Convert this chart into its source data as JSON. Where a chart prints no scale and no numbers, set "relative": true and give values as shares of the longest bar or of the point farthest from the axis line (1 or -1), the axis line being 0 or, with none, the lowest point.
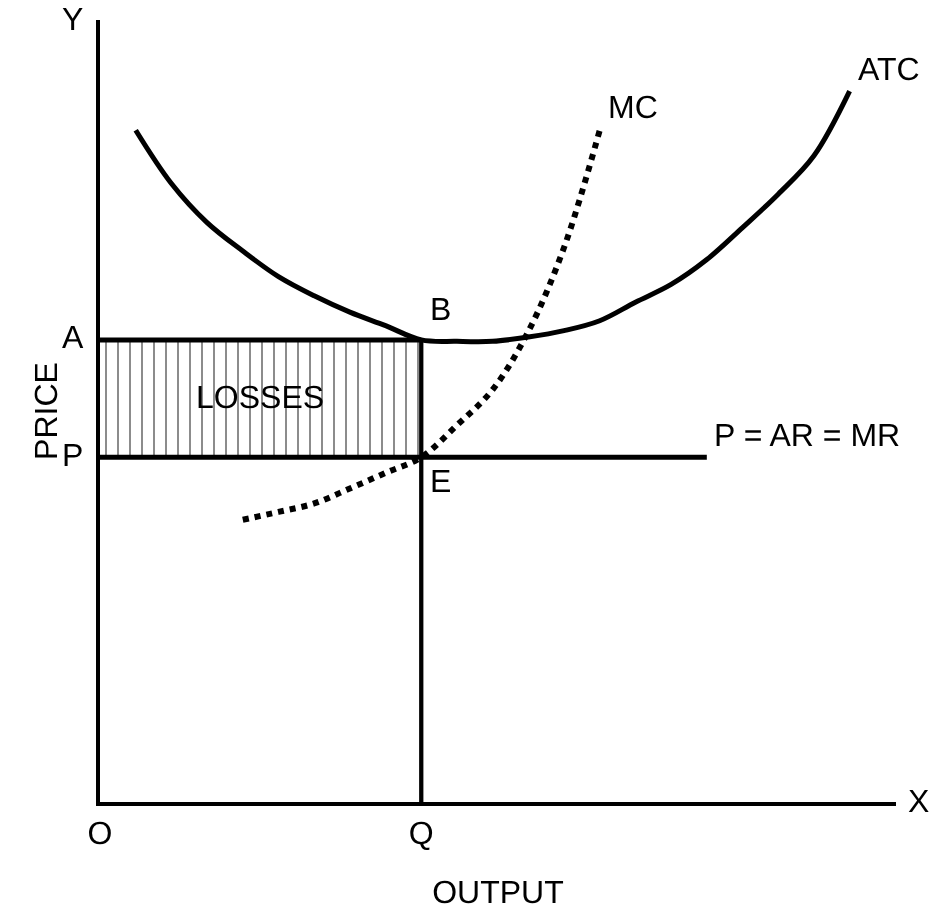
{
  "chart_data": {
    "type": "line",
    "relative": true,
    "xlabel": "OUTPUT",
    "ylabel": "PRICE",
    "legend": false,
    "marker": "none",
    "categories": [
      "O",
      null,
      null,
      null,
      null,
      null,
      null,
      null,
      null,
      "Q",
      null,
      null,
      null,
      null,
      null,
      null,
      null,
      null,
      null,
      null,
      null,
      null,
      null
    ],
    "series": [
      {
        "name": "ATC",
        "color": "#000000",
        "line_style": "solid",
        "values": [
          null,
          0.945,
          0.87,
          0.815,
          0.775,
          0.739,
          0.712,
          0.689,
          0.67,
          0.65,
          0.648,
          0.648,
          0.654,
          0.663,
          0.677,
          0.703,
          0.728,
          0.763,
          0.808,
          0.855,
          0.909,
          1,
          null
        ]
      },
      {
        "name": "MC",
        "color": "#000000",
        "line_style": "dotted",
        "values": [
          null,
          null,
          null,
          null,
          0.397,
          0.408,
          0.42,
          0.441,
          0.463,
          0.485,
          0.53,
          0.58,
          0.662,
          0.78,
          0.945,
          null,
          null,
          null,
          null,
          null,
          null,
          null,
          null
        ]
      },
      {
        "name": "P = AR = MR",
        "color": "#000000",
        "line_style": "solid",
        "values": [
          0.485,
          0.485,
          0.485,
          0.485,
          0.485,
          0.485,
          0.485,
          0.485,
          0.485,
          0.485,
          0.485,
          0.485,
          0.485,
          0.485,
          0.485,
          0.485,
          0.485,
          0.485,
          null,
          null,
          null,
          null,
          null
        ]
      },
      {
        "color": "#000000",
        "line_style": "solid",
        "values": [
          0.65,
          0.65,
          0.65,
          0.65,
          0.65,
          0.65,
          0.65,
          0.65,
          0.65,
          0.65,
          null,
          null,
          null,
          null,
          null,
          null,
          null,
          null,
          null,
          null,
          null,
          null,
          null
        ],
        "lower": [
          0.485,
          0.485,
          0.485,
          0.485,
          0.485,
          0.485,
          0.485,
          0.485,
          0.485,
          0.485,
          null,
          null,
          null,
          null,
          null,
          null,
          null,
          null,
          null,
          null,
          null,
          null,
          null
        ],
        "upper": [
          0.65,
          0.65,
          0.65,
          0.65,
          0.65,
          0.65,
          0.65,
          0.65,
          0.65,
          0.65,
          null,
          null,
          null,
          null,
          null,
          null,
          null,
          null,
          null,
          null,
          null,
          null,
          null
        ]
      },
      {
        "type": "bar",
        "color": "#000000",
        "values": [
          null,
          null,
          null,
          null,
          null,
          null,
          null,
          null,
          null,
          0.65,
          null,
          null,
          null,
          null,
          null,
          null,
          null,
          null,
          null,
          null,
          null,
          null,
          null
        ]
      }
    ],
    "annotations": [
      {
        "text": "B",
        "x": "Q",
        "y": 0.65
      },
      {
        "text": "E",
        "x": "Q",
        "y": 0.485
      },
      {
        "text": "A",
        "x": "O",
        "y": 0.65
      },
      {
        "text": "P",
        "x": "O",
        "y": 0.485
      },
      "LOSSES",
      "X",
      "Y"
    ]
  }
}
